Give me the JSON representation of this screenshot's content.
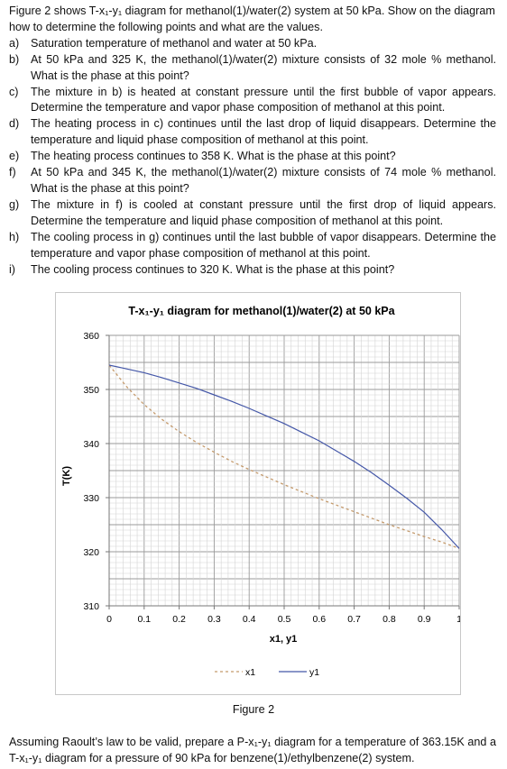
{
  "problem": {
    "intro": "Figure 2 shows T-x₁-y₁ diagram for methanol(1)/water(2) system at 50 kPa. Show on the diagram how to determine the following points and what are the values.",
    "items": [
      {
        "label": "a)",
        "text": "Saturation temperature of methanol and water at 50 kPa."
      },
      {
        "label": "b)",
        "text": "At 50 kPa and 325 K, the methanol(1)/water(2) mixture consists of 32 mole % methanol. What is the phase at this point?"
      },
      {
        "label": "c)",
        "text": "The mixture in b) is heated at constant pressure until the first bubble of vapor appears. Determine the temperature and vapor phase composition of methanol at this point."
      },
      {
        "label": "d)",
        "text": "The heating process in c) continues until the last drop of liquid disappears. Determine the temperature and liquid phase composition of methanol at this point."
      },
      {
        "label": "e)",
        "text": "The heating process continues to 358 K. What is the phase at this point?"
      },
      {
        "label": "f)",
        "text": "At 50 kPa and 345 K, the methanol(1)/water(2) mixture consists of 74 mole % methanol. What is the phase at this point?"
      },
      {
        "label": "g)",
        "text": "The mixture in f) is cooled at constant pressure until the first drop of liquid appears. Determine the temperature and liquid phase composition of methanol at this point."
      },
      {
        "label": "h)",
        "text": "The cooling process in g) continues until the last bubble of vapor disappears. Determine the temperature and vapor phase composition of methanol at this point."
      },
      {
        "label": "i)",
        "text": "The cooling process continues to 320 K. What is the phase at this point?"
      }
    ]
  },
  "chart_data": {
    "type": "line",
    "title": "T-x₁-y₁ diagram for methanol(1)/water(2) at 50 kPa",
    "xlabel": "x1, y1",
    "ylabel": "T(K)",
    "xlim": [
      0,
      1
    ],
    "ylim": [
      310,
      360
    ],
    "x_ticks": [
      "0",
      "0.1",
      "0.2",
      "0.3",
      "0.4",
      "0.5",
      "0.6",
      "0.7",
      "0.8",
      "0.9",
      "1"
    ],
    "y_ticks": [
      "310",
      "320",
      "330",
      "340",
      "350",
      "360"
    ],
    "grid": true,
    "legend_position": "bottom",
    "series": [
      {
        "name": "x1",
        "style": "dashed",
        "color": "#c49a6c",
        "x": [
          0,
          0.05,
          0.1,
          0.15,
          0.2,
          0.25,
          0.3,
          0.35,
          0.4,
          0.45,
          0.5,
          0.55,
          0.6,
          0.65,
          0.7,
          0.75,
          0.8,
          0.85,
          0.9,
          0.95,
          1
        ],
        "y": [
          354.5,
          350.5,
          347.2,
          344.5,
          342.2,
          340.2,
          338.4,
          336.7,
          335.2,
          333.8,
          332.4,
          331.1,
          329.8,
          328.6,
          327.4,
          326.2,
          325.0,
          323.9,
          322.8,
          321.8,
          320.6
        ]
      },
      {
        "name": "y1",
        "style": "solid",
        "color": "#4457a8",
        "x": [
          0,
          0.05,
          0.1,
          0.15,
          0.2,
          0.25,
          0.3,
          0.35,
          0.4,
          0.45,
          0.5,
          0.55,
          0.6,
          0.65,
          0.7,
          0.75,
          0.8,
          0.85,
          0.9,
          0.95,
          1
        ],
        "y": [
          354.5,
          353.8,
          353.1,
          352.2,
          351.2,
          350.2,
          349.0,
          347.8,
          346.5,
          345.1,
          343.7,
          342.1,
          340.5,
          338.6,
          336.7,
          334.6,
          332.3,
          329.9,
          327.3,
          324.1,
          320.6
        ]
      }
    ]
  },
  "caption": "Figure 2",
  "footer": "Assuming Raoult’s law to be valid, prepare a P-x₁-y₁ diagram for a temperature of 363.15K and a T-x₁-y₁ diagram for a pressure of 90 kPa for benzene(1)/ethylbenzene(2) system."
}
